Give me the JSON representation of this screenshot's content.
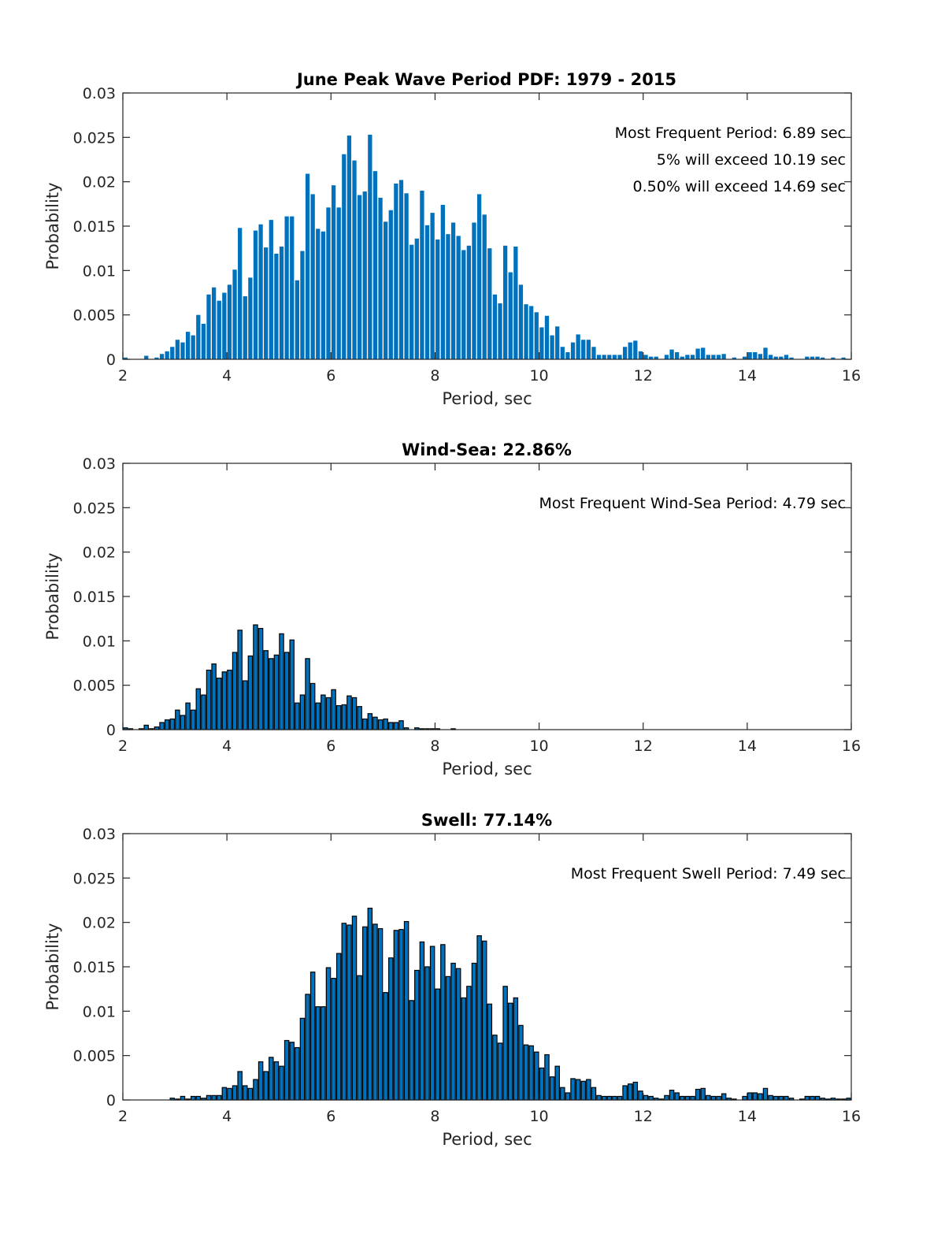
{
  "chart_data": [
    {
      "type": "bar",
      "title": "June Peak Wave Period PDF: 1979 - 2015",
      "xlabel": "Period, sec",
      "ylabel": "Probability",
      "xlim": [
        2,
        16
      ],
      "ylim": [
        0,
        0.03
      ],
      "xticks": [
        "2",
        "4",
        "6",
        "8",
        "10",
        "12",
        "14",
        "16"
      ],
      "yticks": [
        "0",
        "0.005",
        "0.01",
        "0.015",
        "0.02",
        "0.025",
        "0.03"
      ],
      "bar_color": "#0072BD",
      "bar_outline": false,
      "bin_start": 2.0,
      "bin_width": 0.1,
      "annotations": [
        "Most Frequent Period: 6.89 sec",
        "5% will exceed 10.19 sec",
        "0.50% will exceed 14.69 sec"
      ],
      "values": [
        0.0002,
        0,
        0,
        0,
        0.0004,
        0,
        0.0002,
        0.0006,
        0.0009,
        0.0014,
        0.0022,
        0.0019,
        0.0031,
        0.0027,
        0.005,
        0.004,
        0.0073,
        0.0081,
        0.0066,
        0.0075,
        0.0084,
        0.0101,
        0.0148,
        0.0071,
        0.0092,
        0.0145,
        0.0152,
        0.0126,
        0.0157,
        0.0119,
        0.0127,
        0.0161,
        0.0161,
        0.0089,
        0.0122,
        0.0209,
        0.0186,
        0.0147,
        0.0144,
        0.0171,
        0.0196,
        0.0171,
        0.0231,
        0.0252,
        0.0224,
        0.0185,
        0.0189,
        0.0253,
        0.0212,
        0.0182,
        0.0155,
        0.0168,
        0.0198,
        0.0202,
        0.0187,
        0.0129,
        0.0136,
        0.019,
        0.0151,
        0.0165,
        0.0135,
        0.0174,
        0.0141,
        0.0154,
        0.0139,
        0.0123,
        0.0128,
        0.0154,
        0.0186,
        0.0163,
        0.0125,
        0.0073,
        0.0063,
        0.0128,
        0.0098,
        0.0127,
        0.0084,
        0.0062,
        0.006,
        0.0053,
        0.0036,
        0.0049,
        0.0027,
        0.0037,
        0.0014,
        0.0008,
        0.0019,
        0.0028,
        0.0022,
        0.0022,
        0.0014,
        0.0005,
        0.0005,
        0.0005,
        0.0005,
        0.0005,
        0.0014,
        0.0019,
        0.0021,
        0.0009,
        0.0005,
        0.0003,
        0.0003,
        0,
        0.0005,
        0.0011,
        0.0008,
        0.0003,
        0.0005,
        0.0005,
        0.0012,
        0.0013,
        0.0005,
        0.0005,
        0.0005,
        0.0006,
        0,
        0.0002,
        0,
        0.0003,
        0.0008,
        0.0008,
        0.0006,
        0.0013,
        0.0005,
        0.0003,
        0.0003,
        0.0005,
        0.0002,
        0,
        0,
        0.0003,
        0.0003,
        0.0003,
        0.0002,
        0,
        0.0002,
        0,
        0.0002,
        0
      ]
    },
    {
      "type": "bar",
      "title": "Wind-Sea: 22.86%",
      "xlabel": "Period, sec",
      "ylabel": "Probability",
      "xlim": [
        2,
        16
      ],
      "ylim": [
        0,
        0.03
      ],
      "xticks": [
        "2",
        "4",
        "6",
        "8",
        "10",
        "12",
        "14",
        "16"
      ],
      "yticks": [
        "0",
        "0.005",
        "0.01",
        "0.015",
        "0.02",
        "0.025",
        "0.03"
      ],
      "bar_color": "#0072BD",
      "bar_outline": true,
      "bin_start": 2.0,
      "bin_width": 0.1,
      "annotations": [
        "Most Frequent Wind-Sea Period: 4.79 sec"
      ],
      "values": [
        0.0002,
        0.0001,
        0,
        0.0001,
        0.0005,
        0.0001,
        0.0003,
        0.0008,
        0.0011,
        0.0012,
        0.0022,
        0.0016,
        0.003,
        0.0022,
        0.0046,
        0.0039,
        0.0067,
        0.0074,
        0.0058,
        0.0065,
        0.0067,
        0.0087,
        0.0112,
        0.0055,
        0.0083,
        0.0118,
        0.0114,
        0.0089,
        0.008,
        0.0084,
        0.0108,
        0.0087,
        0.0101,
        0.003,
        0.0039,
        0.008,
        0.0052,
        0.003,
        0.0039,
        0.0036,
        0.0045,
        0.0027,
        0.0028,
        0.0038,
        0.0036,
        0.0026,
        0.0012,
        0.0018,
        0.0014,
        0.0011,
        0.0012,
        0.0008,
        0.0008,
        0.001,
        0.0002,
        0,
        0.0002,
        0.0001,
        0.0001,
        0.0001,
        0.0001,
        0,
        0,
        0.0001,
        0,
        0,
        0,
        0,
        0,
        0,
        0,
        0,
        0,
        0,
        0,
        0,
        0,
        0,
        0,
        0,
        0,
        0,
        0,
        0,
        0,
        0,
        0,
        0,
        0,
        0,
        0,
        0,
        0,
        0,
        0,
        0,
        0,
        0,
        0,
        0,
        0,
        0,
        0,
        0,
        0,
        0,
        0,
        0,
        0,
        0,
        0,
        0,
        0,
        0,
        0,
        0,
        0,
        0,
        0,
        0,
        0,
        0,
        0,
        0,
        0,
        0,
        0,
        0,
        0,
        0,
        0,
        0,
        0,
        0,
        0,
        0,
        0,
        0,
        0,
        0
      ]
    },
    {
      "type": "bar",
      "title": "Swell: 77.14%",
      "xlabel": "Period, sec",
      "ylabel": "Probability",
      "xlim": [
        2,
        16
      ],
      "ylim": [
        0,
        0.03
      ],
      "xticks": [
        "2",
        "4",
        "6",
        "8",
        "10",
        "12",
        "14",
        "16"
      ],
      "yticks": [
        "0",
        "0.005",
        "0.01",
        "0.015",
        "0.02",
        "0.025",
        "0.03"
      ],
      "bar_color": "#0072BD",
      "bar_outline": true,
      "bin_start": 2.0,
      "bin_width": 0.1,
      "annotations": [
        "Most Frequent Swell Period: 7.49 sec"
      ],
      "values": [
        0,
        0,
        0,
        0,
        0,
        0,
        0,
        0,
        0,
        0.0002,
        0.0001,
        0.0004,
        0.0001,
        0.0004,
        0.0004,
        0.0002,
        0.0005,
        0.0005,
        0.0005,
        0.0014,
        0.0013,
        0.0016,
        0.0032,
        0.0016,
        0.0013,
        0.0023,
        0.0043,
        0.0032,
        0.0048,
        0.0043,
        0.0038,
        0.0067,
        0.0065,
        0.0059,
        0.0092,
        0.0119,
        0.0144,
        0.0105,
        0.0105,
        0.0149,
        0.0137,
        0.0165,
        0.0199,
        0.0197,
        0.0207,
        0.014,
        0.0195,
        0.0216,
        0.0198,
        0.0193,
        0.0121,
        0.016,
        0.0191,
        0.0192,
        0.0201,
        0.0112,
        0.0146,
        0.0178,
        0.015,
        0.0173,
        0.0125,
        0.0175,
        0.0139,
        0.0154,
        0.0148,
        0.0115,
        0.0128,
        0.0154,
        0.0185,
        0.0179,
        0.0108,
        0.0073,
        0.0064,
        0.0128,
        0.0109,
        0.0115,
        0.0084,
        0.0062,
        0.0061,
        0.0054,
        0.0036,
        0.0051,
        0.0026,
        0.0038,
        0.0014,
        0.0008,
        0.0024,
        0.0023,
        0.0021,
        0.0023,
        0.0014,
        0.0005,
        0.0004,
        0.0004,
        0.0004,
        0.0004,
        0.0016,
        0.0018,
        0.002,
        0.001,
        0.0005,
        0.0004,
        0.0002,
        0.0001,
        0.0005,
        0.0011,
        0.0008,
        0.0004,
        0.0004,
        0.0004,
        0.0012,
        0.0013,
        0.0005,
        0.0004,
        0.0004,
        0.0007,
        0.0002,
        0.0001,
        0,
        0.0004,
        0.0008,
        0.0008,
        0.0007,
        0.0013,
        0.0005,
        0.0004,
        0.0004,
        0.0004,
        0.0002,
        0,
        0.0001,
        0.0004,
        0.0004,
        0.0004,
        0.0002,
        0.0001,
        0.0002,
        0.0001,
        0.0001,
        0.0002
      ]
    }
  ]
}
